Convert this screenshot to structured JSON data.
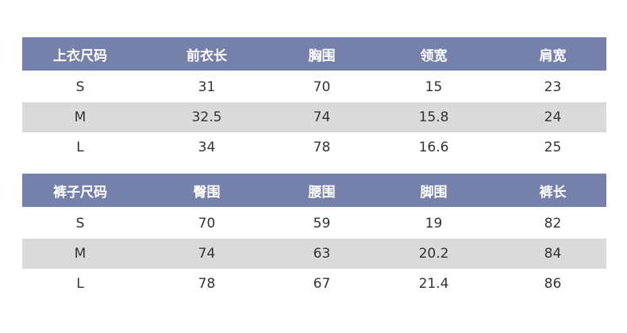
{
  "colors": {
    "header_bg": "#7580ab",
    "header_text": "#ffffff",
    "shaded_row": "#dadada",
    "body_text": "#333333"
  },
  "tops": {
    "headers": [
      "上衣尺码",
      "前衣长",
      "胸围",
      "领宽",
      "肩宽"
    ],
    "rows": [
      [
        "S",
        "31",
        "70",
        "15",
        "23"
      ],
      [
        "M",
        "32.5",
        "74",
        "15.8",
        "24"
      ],
      [
        "L",
        "34",
        "78",
        "16.6",
        "25"
      ]
    ]
  },
  "pants": {
    "headers": [
      "裤子尺码",
      "臀围",
      "腰围",
      "脚围",
      "裤长"
    ],
    "rows": [
      [
        "S",
        "70",
        "59",
        "19",
        "82"
      ],
      [
        "M",
        "74",
        "63",
        "20.2",
        "84"
      ],
      [
        "L",
        "78",
        "67",
        "21.4",
        "86"
      ]
    ]
  }
}
